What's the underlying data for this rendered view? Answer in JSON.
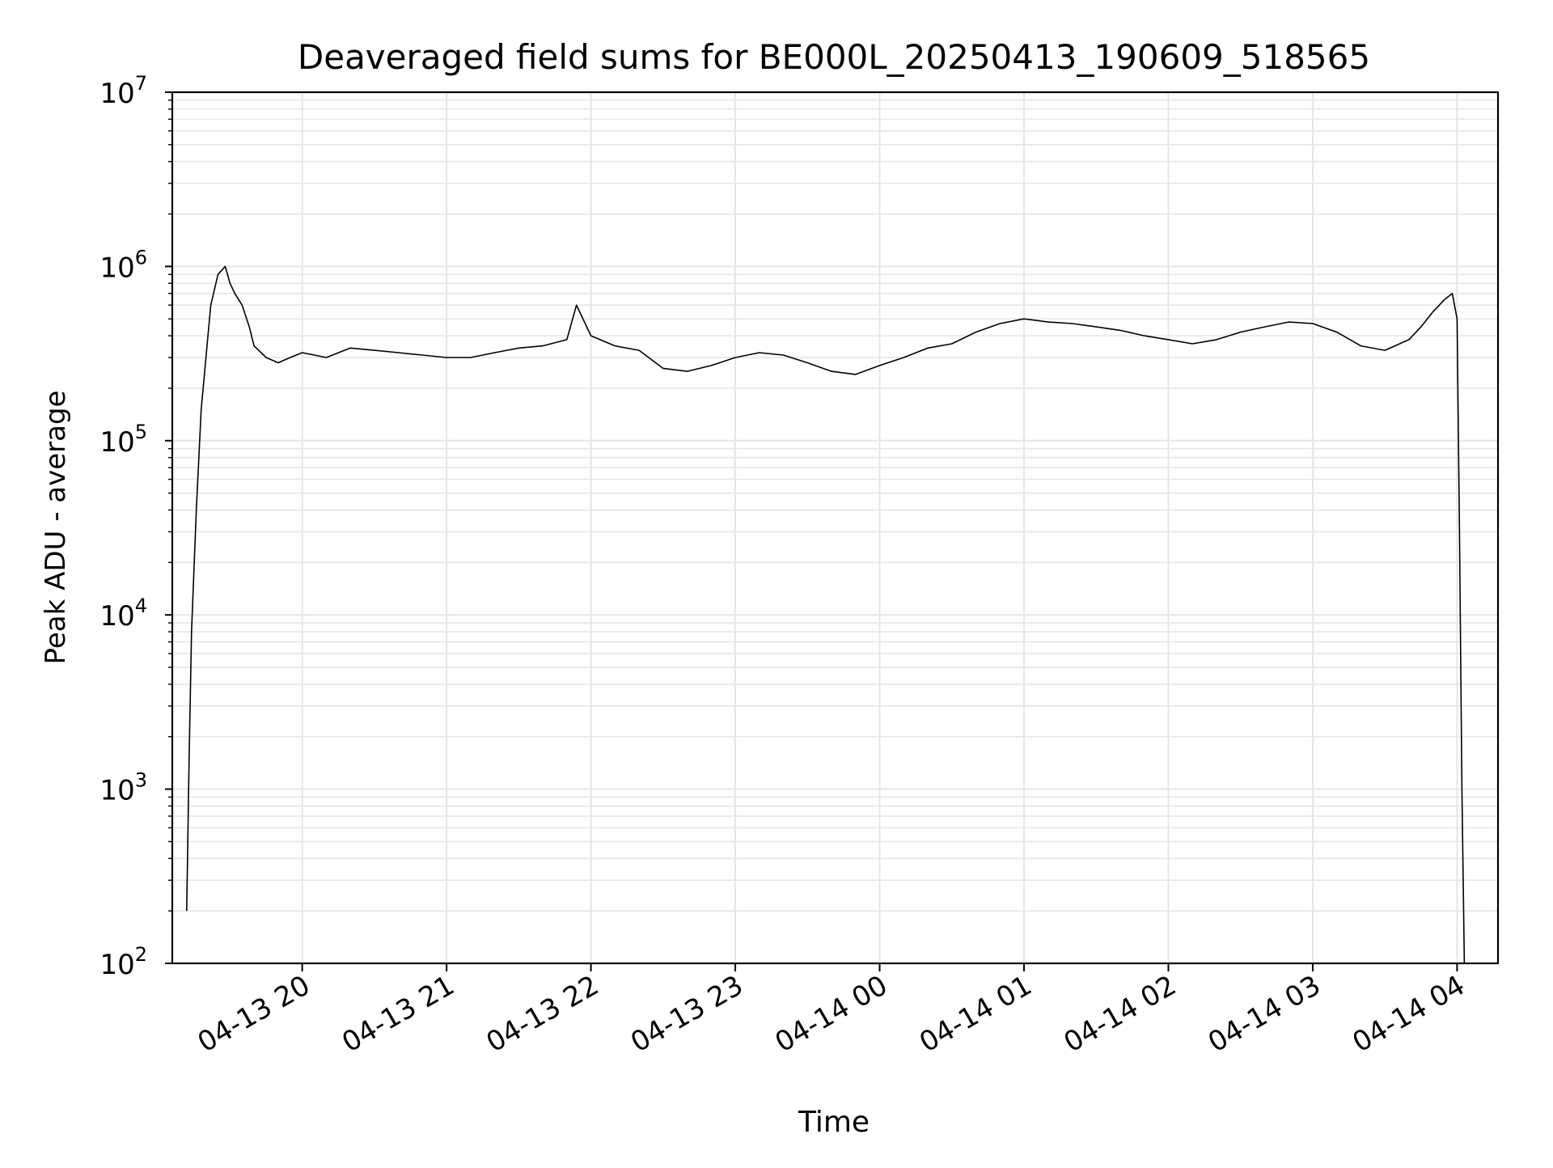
{
  "chart_data": {
    "type": "line",
    "title": "Deaveraged field sums for BE000L_20250413_190609_518565",
    "xlabel": "Time",
    "ylabel": "Peak ADU - average",
    "yscale": "log",
    "ylim": [
      100,
      10000000
    ],
    "xlim": [
      "2025-04-13 19:06",
      "2025-04-14 04:17"
    ],
    "x_ticks": [
      {
        "t": "2025-04-13 20:00",
        "label": "04-13 20"
      },
      {
        "t": "2025-04-13 21:00",
        "label": "04-13 21"
      },
      {
        "t": "2025-04-13 22:00",
        "label": "04-13 22"
      },
      {
        "t": "2025-04-13 23:00",
        "label": "04-13 23"
      },
      {
        "t": "2025-04-14 00:00",
        "label": "04-14 00"
      },
      {
        "t": "2025-04-14 01:00",
        "label": "04-14 01"
      },
      {
        "t": "2025-04-14 02:00",
        "label": "04-14 02"
      },
      {
        "t": "2025-04-14 03:00",
        "label": "04-14 03"
      },
      {
        "t": "2025-04-14 04:00",
        "label": "04-14 04"
      }
    ],
    "y_ticks": [
      {
        "v": 100,
        "base": "10",
        "exp": "2"
      },
      {
        "v": 1000,
        "base": "10",
        "exp": "3"
      },
      {
        "v": 10000,
        "base": "10",
        "exp": "4"
      },
      {
        "v": 100000,
        "base": "10",
        "exp": "5"
      },
      {
        "v": 1000000,
        "base": "10",
        "exp": "6"
      },
      {
        "v": 10000000,
        "base": "10",
        "exp": "7"
      }
    ],
    "grid": true,
    "line_color": "#000000",
    "grid_color": "#e6e6e6",
    "series": [
      {
        "x": [
          "2025-04-13 19:12",
          "2025-04-13 19:13",
          "2025-04-13 19:14",
          "2025-04-13 19:16",
          "2025-04-13 19:18",
          "2025-04-13 19:20",
          "2025-04-13 19:22",
          "2025-04-13 19:25",
          "2025-04-13 19:28",
          "2025-04-13 19:30",
          "2025-04-13 19:32",
          "2025-04-13 19:35",
          "2025-04-13 19:38",
          "2025-04-13 19:40",
          "2025-04-13 19:45",
          "2025-04-13 19:50",
          "2025-04-13 19:55",
          "2025-04-13 20:00",
          "2025-04-13 20:10",
          "2025-04-13 20:20",
          "2025-04-13 20:30",
          "2025-04-13 20:40",
          "2025-04-13 20:50",
          "2025-04-13 21:00",
          "2025-04-13 21:10",
          "2025-04-13 21:20",
          "2025-04-13 21:30",
          "2025-04-13 21:40",
          "2025-04-13 21:50",
          "2025-04-13 21:54",
          "2025-04-13 22:00",
          "2025-04-13 22:10",
          "2025-04-13 22:20",
          "2025-04-13 22:30",
          "2025-04-13 22:40",
          "2025-04-13 22:50",
          "2025-04-13 23:00",
          "2025-04-13 23:10",
          "2025-04-13 23:20",
          "2025-04-13 23:30",
          "2025-04-13 23:40",
          "2025-04-13 23:50",
          "2025-04-14 00:00",
          "2025-04-14 00:10",
          "2025-04-14 00:20",
          "2025-04-14 00:30",
          "2025-04-14 00:40",
          "2025-04-14 00:50",
          "2025-04-14 01:00",
          "2025-04-14 01:10",
          "2025-04-14 01:20",
          "2025-04-14 01:30",
          "2025-04-14 01:40",
          "2025-04-14 01:50",
          "2025-04-14 02:00",
          "2025-04-14 02:10",
          "2025-04-14 02:20",
          "2025-04-14 02:30",
          "2025-04-14 02:40",
          "2025-04-14 02:50",
          "2025-04-14 03:00",
          "2025-04-14 03:10",
          "2025-04-14 03:20",
          "2025-04-14 03:30",
          "2025-04-14 03:40",
          "2025-04-14 03:45",
          "2025-04-14 03:50",
          "2025-04-14 03:55",
          "2025-04-14 03:58",
          "2025-04-14 04:00",
          "2025-04-14 04:01",
          "2025-04-14 04:02",
          "2025-04-14 04:03"
        ],
        "values": [
          200,
          1500,
          8000,
          40000,
          150000,
          300000,
          600000,
          900000,
          1000000,
          800000,
          700000,
          600000,
          450000,
          350000,
          300000,
          280000,
          300000,
          320000,
          300000,
          340000,
          330000,
          320000,
          310000,
          300000,
          300000,
          320000,
          340000,
          350000,
          380000,
          600000,
          400000,
          350000,
          330000,
          260000,
          250000,
          270000,
          300000,
          320000,
          310000,
          280000,
          250000,
          240000,
          270000,
          300000,
          340000,
          360000,
          420000,
          470000,
          500000,
          480000,
          470000,
          450000,
          430000,
          400000,
          380000,
          360000,
          380000,
          420000,
          450000,
          480000,
          470000,
          420000,
          350000,
          330000,
          380000,
          450000,
          550000,
          650000,
          700000,
          500000,
          30000,
          1000,
          100
        ]
      }
    ]
  }
}
